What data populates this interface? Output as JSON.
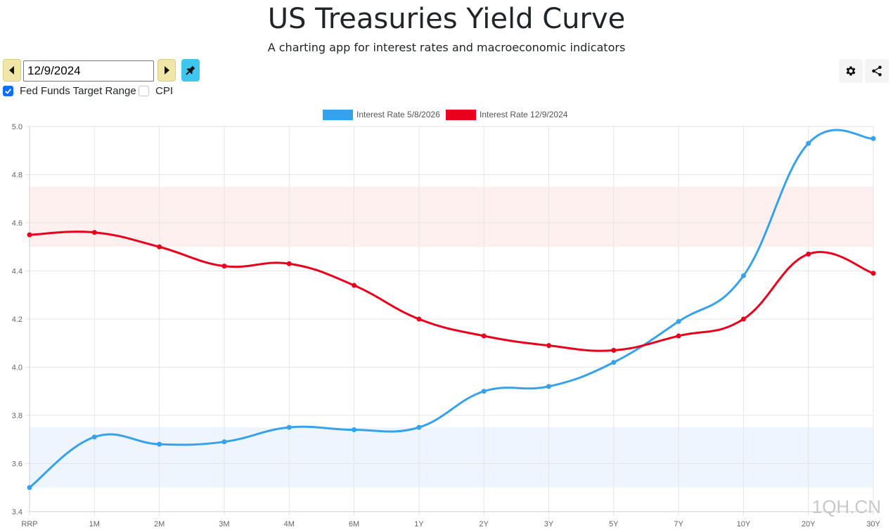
{
  "header": {
    "title": "US Treasuries Yield Curve",
    "subtitle": "A charting app for interest rates and macroeconomic indicators"
  },
  "controls": {
    "date_value": "12/9/2024",
    "prev_icon": "caret-left-icon",
    "next_icon": "caret-right-icon",
    "pin_icon": "pin-icon",
    "settings_icon": "gear-icon",
    "share_icon": "share-icon"
  },
  "toggles": [
    {
      "label": "Fed Funds Target Range",
      "checked": true
    },
    {
      "label": "CPI",
      "checked": false
    }
  ],
  "colors": {
    "series_a": "#36a2eb",
    "series_b": "#e8001c",
    "band_a": "#eef5ff",
    "band_b": "#fff0f0",
    "pin_button": "#3ec6ef",
    "arrow_button": "#efe6a8"
  },
  "watermark": "1QH.CN",
  "chart_data": {
    "type": "line",
    "categories": [
      "RRP",
      "1M",
      "2M",
      "3M",
      "4M",
      "6M",
      "1Y",
      "2Y",
      "3Y",
      "5Y",
      "7Y",
      "10Y",
      "20Y",
      "30Y"
    ],
    "series": [
      {
        "name": "Interest Rate 5/8/2026",
        "color": "#36a2eb",
        "values": [
          3.5,
          3.71,
          3.68,
          3.69,
          3.75,
          3.74,
          3.75,
          3.9,
          3.92,
          4.02,
          4.19,
          4.38,
          4.93,
          4.95
        ]
      },
      {
        "name": "Interest Rate 12/9/2024",
        "color": "#e8001c",
        "values": [
          4.55,
          4.56,
          4.5,
          4.42,
          4.43,
          4.34,
          4.2,
          4.13,
          4.09,
          4.07,
          4.13,
          4.2,
          4.47,
          4.39
        ]
      }
    ],
    "bands": [
      {
        "from": 3.5,
        "to": 3.75,
        "color": "#eef5ff"
      },
      {
        "from": 4.5,
        "to": 4.75,
        "color": "#fff0f0"
      }
    ],
    "y_ticks": [
      "5.0",
      "4.8",
      "4.6",
      "4.4",
      "4.2",
      "4.0",
      "3.8",
      "3.6",
      "3.4"
    ],
    "ylim": [
      3.4,
      5.0
    ],
    "grid": true,
    "legend": "top-center"
  }
}
